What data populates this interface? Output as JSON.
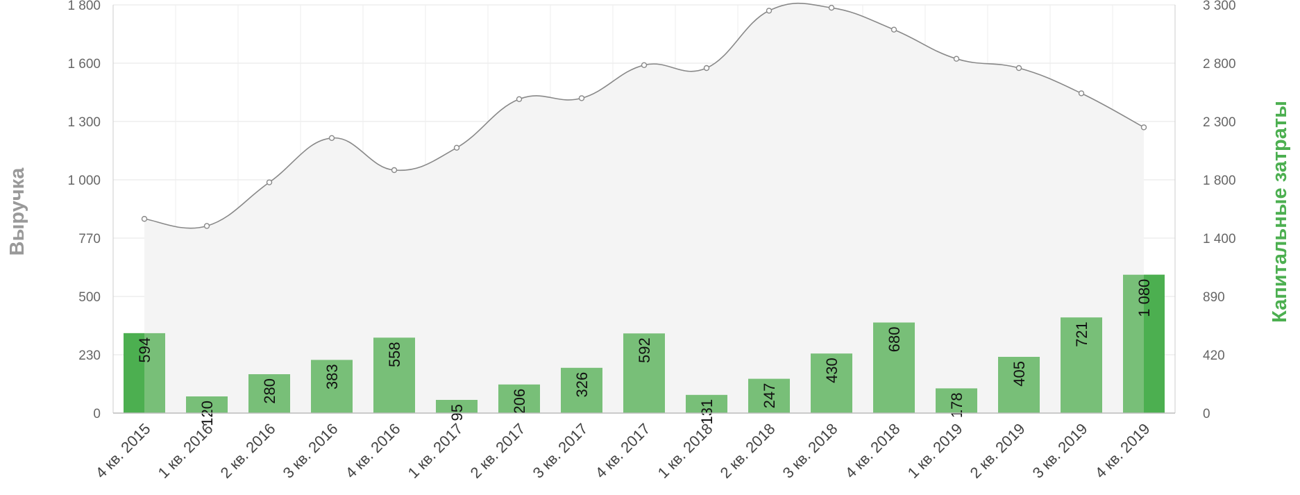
{
  "chart_data": {
    "type": "bar",
    "categories": [
      "4 кв. 2015",
      "1 кв. 2016",
      "2 кв. 2016",
      "3 кв. 2016",
      "4 кв. 2016",
      "1 кв. 2017",
      "2 кв. 2017",
      "3 кв. 2017",
      "4 кв. 2017",
      "1 кв. 2018",
      "2 кв. 2018",
      "3 кв. 2018",
      "4 кв. 2018",
      "1 кв. 2019",
      "2 кв. 2019",
      "3 кв. 2019",
      "4 кв. 2019"
    ],
    "series": [
      {
        "name": "Капитальные затраты",
        "type": "bar",
        "axis": "right",
        "color": "#78bf78",
        "highlight_color": "#4caf50",
        "values": [
          594,
          120,
          280,
          383,
          558,
          95,
          206,
          326,
          592,
          131,
          247,
          430,
          680,
          178,
          405,
          721,
          1080
        ],
        "labels": [
          "594",
          "120",
          "280",
          "383",
          "558",
          "95",
          "206",
          "326",
          "592",
          "131",
          "247",
          "430",
          "680",
          "178",
          "405",
          "721",
          "1 080"
        ]
      },
      {
        "name": "Выручка",
        "type": "area",
        "axis": "left",
        "color": "#888888",
        "fill": "#f4f4f4",
        "values": [
          846,
          818,
          990,
          1215,
          1050,
          1165,
          1415,
          1420,
          1590,
          1575,
          1780,
          1790,
          1715,
          1615,
          1575,
          1445,
          1270
        ]
      }
    ],
    "y_left": {
      "label": "Выручка",
      "ticks": [
        "0",
        "230",
        "500",
        "770",
        "1 000",
        "1 300",
        "1 600",
        "1 800"
      ]
    },
    "y_right": {
      "label": "Капитальные затраты",
      "ticks": [
        "0",
        "420",
        "890",
        "1 400",
        "1 800",
        "2 300",
        "2 800",
        "3 300"
      ]
    },
    "grid": true,
    "legend": "none"
  }
}
